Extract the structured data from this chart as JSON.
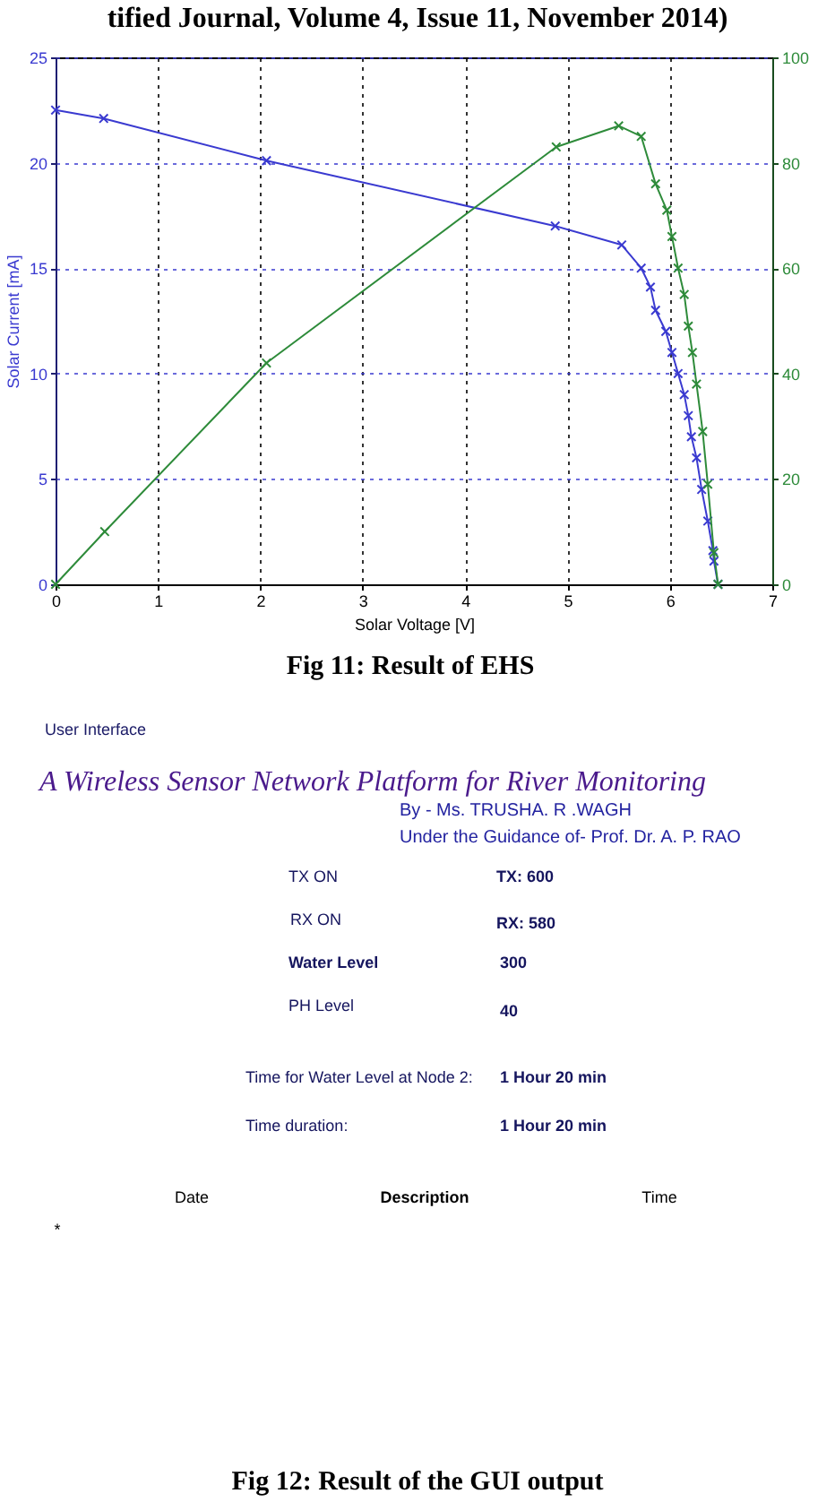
{
  "chart_data": [
    {
      "type": "line",
      "xlabel": "Solar Voltage [V]",
      "ylabel": "Solar Current [mA]",
      "xlim": [
        0,
        7
      ],
      "xticks": [
        0,
        1,
        2,
        3,
        4,
        5,
        6,
        7
      ],
      "ylim": [
        0,
        25
      ],
      "yticks": [
        0,
        5,
        10,
        15,
        20,
        25
      ],
      "y2lim": [
        0,
        100
      ],
      "y2ticks": [
        0,
        20,
        40,
        60,
        80,
        100
      ],
      "grid": true,
      "marker": "cross",
      "series": [
        {
          "color": "#3a3ad0",
          "x": [
            0,
            0.47,
            2.06,
            4.88,
            5.53,
            5.72,
            5.81,
            5.86,
            5.96,
            6.02,
            6.08,
            6.14,
            6.18,
            6.21,
            6.26,
            6.31,
            6.37,
            6.42,
            6.43,
            6.47
          ],
          "values": [
            22.5,
            22.1,
            20.1,
            17.0,
            16.1,
            15.0,
            14.1,
            13.0,
            12.0,
            11.0,
            10.0,
            9.0,
            8.0,
            7.0,
            6.0,
            4.5,
            3.0,
            1.6,
            1.1,
            0
          ]
        },
        {
          "color": "#2e8b3a",
          "axis": "y2",
          "x": [
            0,
            0.48,
            2.06,
            4.89,
            5.5,
            5.72,
            5.86,
            5.97,
            6.02,
            6.08,
            6.14,
            6.18,
            6.22,
            6.26,
            6.32,
            6.37,
            6.43,
            6.47
          ],
          "values": [
            0,
            10,
            42,
            83,
            87,
            85,
            76,
            71,
            66,
            60,
            55,
            49,
            44,
            38,
            29,
            19,
            6,
            0
          ]
        }
      ],
      "annotations": [
        "tified Journal, Volume 4, Issue 11, November 2014)",
        "Fig 11: Result of EHS"
      ]
    },
    {
      "type": "other",
      "title": "User Interface",
      "subtitle": "A Wireless Sensor Network Platform for River Monitoring",
      "annotations": [
        "By - Ms. TRUSHA. R .WAGH",
        "Under the Guidance of- Prof. Dr. A. P. RAO",
        "TX ON",
        "TX: 600",
        "RX ON",
        "RX: 580",
        "Water Level",
        "300",
        "PH Level",
        "40",
        "Time for Water Level at Node 2:",
        "1 Hour 20 min",
        "Time duration:",
        "1 Hour 20 min",
        "Date",
        "Description",
        "Time",
        "*",
        "Fig 12: Result of the GUI output"
      ]
    }
  ]
}
